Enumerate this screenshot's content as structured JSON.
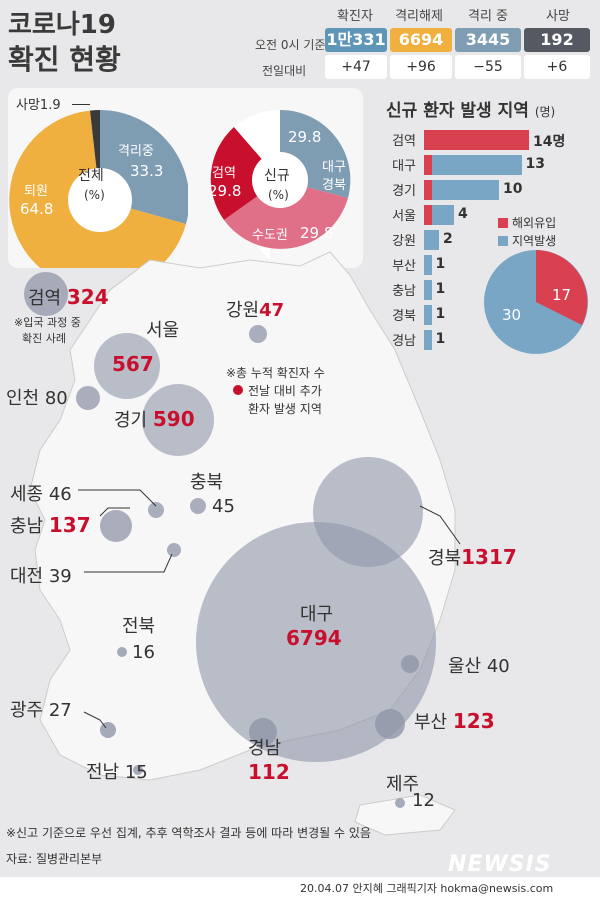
{
  "title": {
    "line1": "코로나19",
    "line2": "확진 현황"
  },
  "header": {
    "time_label": "오전 0시 기준",
    "change_label": "전일대비",
    "cols": [
      {
        "label": "확진자",
        "value": "1만331",
        "change": "+47",
        "color": "#5e96b8"
      },
      {
        "label": "격리해제",
        "value": "6694",
        "change": "+96",
        "color": "#f0b040"
      },
      {
        "label": "격리 중",
        "value": "3445",
        "change": "−55",
        "color": "#7e9cb2"
      },
      {
        "label": "사망",
        "value": "192",
        "change": "+6",
        "color": "#555a62"
      }
    ]
  },
  "pie_total": {
    "center": "전체",
    "unit": "(%)",
    "death_label": "사망",
    "death_value": "1.9",
    "released_label": "퇴원",
    "released_value": "64.8",
    "isolated_label": "격리중",
    "isolated_value": "33.3"
  },
  "pie_new": {
    "center": "신규",
    "unit": "(%)",
    "daegu_value": "29.8",
    "daegu_label1": "대구",
    "daegu_label2": "경북",
    "capital_label": "수도권",
    "capital_value": "29.8",
    "airport_label": "검역",
    "airport_value": "29.8"
  },
  "chart_data": [
    {
      "type": "bar",
      "title": "신규 환자 발생 지역",
      "title_unit": "(명)",
      "categories": [
        "검역",
        "대구",
        "경기",
        "서울",
        "강원",
        "부산",
        "충남",
        "경북",
        "경남"
      ],
      "values": [
        14,
        13,
        10,
        4,
        2,
        1,
        1,
        1,
        1
      ],
      "series": [
        {
          "name": "해외유입",
          "values": [
            14,
            1,
            1,
            1,
            0,
            0,
            0,
            0,
            0
          ],
          "color": "#d94050"
        },
        {
          "name": "지역발생",
          "values": [
            0,
            12,
            9,
            3,
            2,
            1,
            1,
            1,
            1
          ],
          "color": "#7aa6c6"
        }
      ],
      "first_value_label": "14명"
    },
    {
      "type": "pie",
      "categories": [
        "해외유입",
        "지역발생"
      ],
      "values": [
        17,
        30
      ],
      "colors": [
        "#d94050",
        "#7aa6c6"
      ]
    }
  ],
  "legend": {
    "overseas": "해외유입",
    "local": "지역발생"
  },
  "note_top": {
    "line1": "※총 누적 확진자 수",
    "line2": "전날 대비 추가",
    "line3": "환자 발생 지역"
  },
  "regions": {
    "airport": {
      "name": "검역",
      "value": "324",
      "note1": "※입국 과정 중",
      "note2": "확진 사례"
    },
    "gangwon": {
      "name": "강원",
      "value": "47"
    },
    "seoul": {
      "name": "서울",
      "value": "567"
    },
    "incheon": {
      "name": "인천",
      "value": "80"
    },
    "gyeonggi": {
      "name": "경기",
      "value": "590"
    },
    "chungbuk": {
      "name": "충북",
      "value": "45"
    },
    "sejong": {
      "name": "세종",
      "value": "46"
    },
    "chungnam": {
      "name": "충남",
      "value": "137"
    },
    "daejeon": {
      "name": "대전",
      "value": "39"
    },
    "gyeongbuk": {
      "name": "경북",
      "value": "1317"
    },
    "daegu": {
      "name": "대구",
      "value": "6794"
    },
    "jeonbuk": {
      "name": "전북",
      "value": "16"
    },
    "ulsan": {
      "name": "울산",
      "value": "40"
    },
    "gwangju": {
      "name": "광주",
      "value": "27"
    },
    "busan": {
      "name": "부산",
      "value": "123"
    },
    "gyeongnam": {
      "name": "경남",
      "value": "112"
    },
    "jeonnam": {
      "name": "전남",
      "value": "15"
    },
    "jeju": {
      "name": "제주",
      "value": "12"
    }
  },
  "footer": {
    "note": "※신고 기준으로 우선 집계, 추후 역학조사 결과 등에 따라 변경될 수 있음",
    "source": "자료: 질병관리본부",
    "credit": "20.04.07  안지혜  그래픽기자  hokma@newsis.com",
    "logo": "NEWSIS"
  }
}
